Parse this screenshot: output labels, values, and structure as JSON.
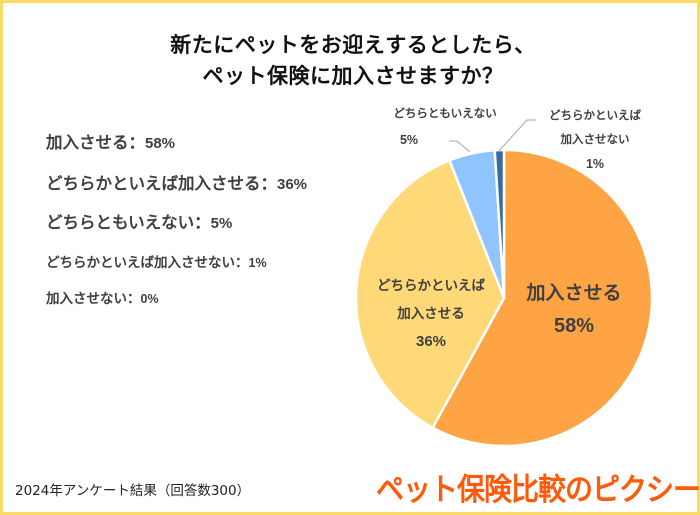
{
  "title": {
    "line1": "新たにペットをお迎えするとしたら、",
    "line2": "ペット保険に加入させますか？"
  },
  "legend": [
    {
      "label": "加入させる：",
      "pct": "58%"
    },
    {
      "label": "どちらかといえば加入させる：",
      "pct": "36%"
    },
    {
      "label": "どちらともいえない：",
      "pct": "5%"
    },
    {
      "label": "どちらかといえば加入させない：",
      "pct": "1%"
    },
    {
      "label": "加入させない：",
      "pct": "0%"
    }
  ],
  "slice_labels": {
    "s0": {
      "line1": "加入させる",
      "line2": "58%"
    },
    "s1": {
      "line1": "どちらかといえば",
      "line2": "加入させる",
      "line3": "36%"
    },
    "s2": {
      "line1": "どちらともいえない",
      "line2": "5%"
    },
    "s3": {
      "line1": "どちらかといえば",
      "line2": "加入させない",
      "line3": "1%"
    }
  },
  "footer": "2024年アンケート結果（回答数300）",
  "logo": "ペット保険比較のピクシー",
  "colors": {
    "border": "#FFD966",
    "slice0": "#FFA445",
    "slice1": "#FFD978",
    "slice2": "#8FC4FF",
    "slice3": "#376D9C",
    "slice4": "#A0A0A0",
    "logo": "#FF5A0A"
  },
  "chart_data": {
    "type": "pie",
    "title": "新たにペットをお迎えするとしたら、ペット保険に加入させますか？",
    "categories": [
      "加入させる",
      "どちらかといえば加入させる",
      "どちらともいえない",
      "どちらかといえば加入させない",
      "加入させない"
    ],
    "values": [
      58,
      36,
      5,
      1,
      0
    ],
    "unit": "%",
    "colors": [
      "#FFA445",
      "#FFD978",
      "#8FC4FF",
      "#376D9C",
      "#A0A0A0"
    ],
    "start_angle": "12 o'clock",
    "direction": "clockwise",
    "note": "2024年アンケート結果（回答数300）"
  }
}
